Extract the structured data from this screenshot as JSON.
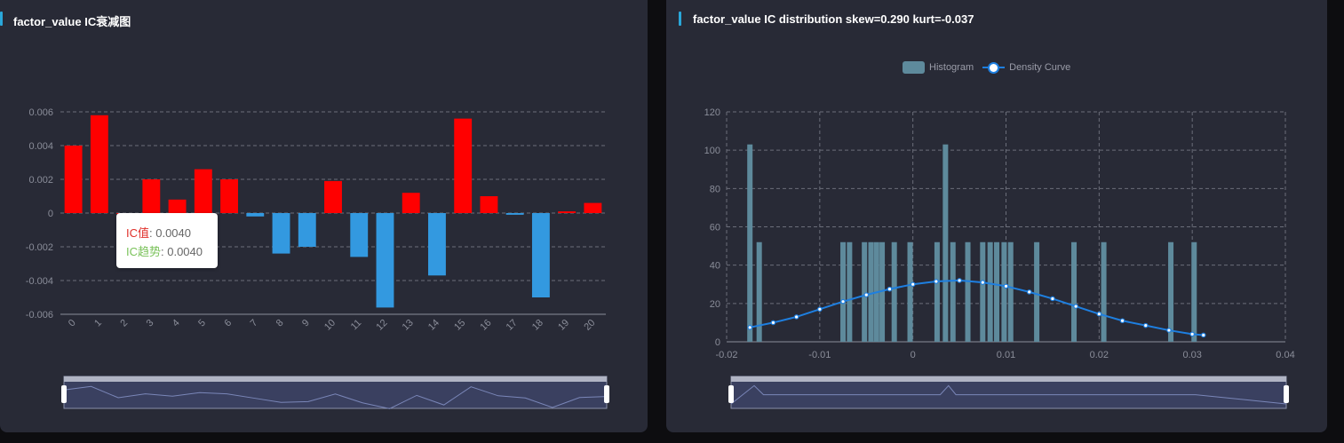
{
  "left_panel": {
    "title": "factor_value IC衰减图"
  },
  "right_panel": {
    "title": "factor_value IC distribution skew=0.290 kurt=-0.037"
  },
  "tooltip": {
    "key1": "IC值",
    "val1": ": 0.0040",
    "key2": "IC趋势",
    "val2": ": 0.0040"
  },
  "legend": {
    "histogram": "Histogram",
    "density": "Density Curve"
  },
  "colors": {
    "positive": "#ff0000",
    "negative": "#3399e0",
    "histogram": "#5e8a9c",
    "density": "#1e7fe0",
    "panel": "#282a36"
  },
  "chart_data": [
    {
      "type": "bar",
      "categories": [
        "0",
        "1",
        "2",
        "3",
        "4",
        "5",
        "6",
        "7",
        "8",
        "9",
        "10",
        "11",
        "12",
        "13",
        "14",
        "15",
        "16",
        "17",
        "18",
        "19",
        "20"
      ],
      "values": [
        0.004,
        0.0058,
        0.0,
        0.002,
        0.0008,
        0.0026,
        0.002,
        -0.0002,
        -0.0024,
        -0.002,
        0.0019,
        -0.0026,
        -0.0056,
        0.0012,
        -0.0037,
        0.0056,
        0.001,
        -0.0001,
        -0.005,
        0.0001,
        0.0006
      ],
      "yticks": [
        "0.006",
        "0.004",
        "0.002",
        "0",
        "-0.002",
        "-0.004",
        "-0.006"
      ],
      "ylim": [
        -0.006,
        0.006
      ],
      "grid": true,
      "colors_rule": "positive red, negative blue"
    },
    {
      "type": "bar",
      "histogram_x": [
        -0.0175,
        -0.0165,
        -0.0075,
        -0.0068,
        -0.0052,
        -0.0045,
        -0.0039,
        -0.0033,
        -0.002,
        -0.0003,
        0.0026,
        0.0035,
        0.0043,
        0.0059,
        0.0075,
        0.0083,
        0.009,
        0.0098,
        0.0105,
        0.0133,
        0.0173,
        0.0205,
        0.0277,
        0.0302
      ],
      "histogram_y": [
        103,
        52,
        52,
        52,
        52,
        52,
        52,
        52,
        52,
        52,
        52,
        103,
        52,
        52,
        52,
        52,
        52,
        52,
        52,
        52,
        52,
        52,
        52,
        52
      ],
      "density_curve": {
        "name": "Density Curve",
        "x": [
          -0.0175,
          -0.015,
          -0.0125,
          -0.01,
          -0.0075,
          -0.005,
          -0.0025,
          0.0,
          0.0025,
          0.005,
          0.0075,
          0.01,
          0.0125,
          0.015,
          0.0175,
          0.02,
          0.0225,
          0.025,
          0.0275,
          0.03,
          0.0312
        ],
        "y": [
          7.5,
          10,
          13,
          17,
          21,
          24.5,
          27.5,
          30,
          31.5,
          32,
          31,
          29,
          26,
          22.5,
          18.5,
          14.5,
          11,
          8.5,
          6,
          4,
          3.5
        ]
      },
      "xticks": [
        "-0.02",
        "-0.01",
        "0",
        "0.01",
        "0.02",
        "0.03",
        "0.04"
      ],
      "yticks": [
        "0",
        "20",
        "40",
        "60",
        "80",
        "100",
        "120"
      ],
      "xlim": [
        -0.02,
        0.04
      ],
      "ylim": [
        0,
        120
      ],
      "grid": true,
      "legend_position": "top"
    }
  ]
}
